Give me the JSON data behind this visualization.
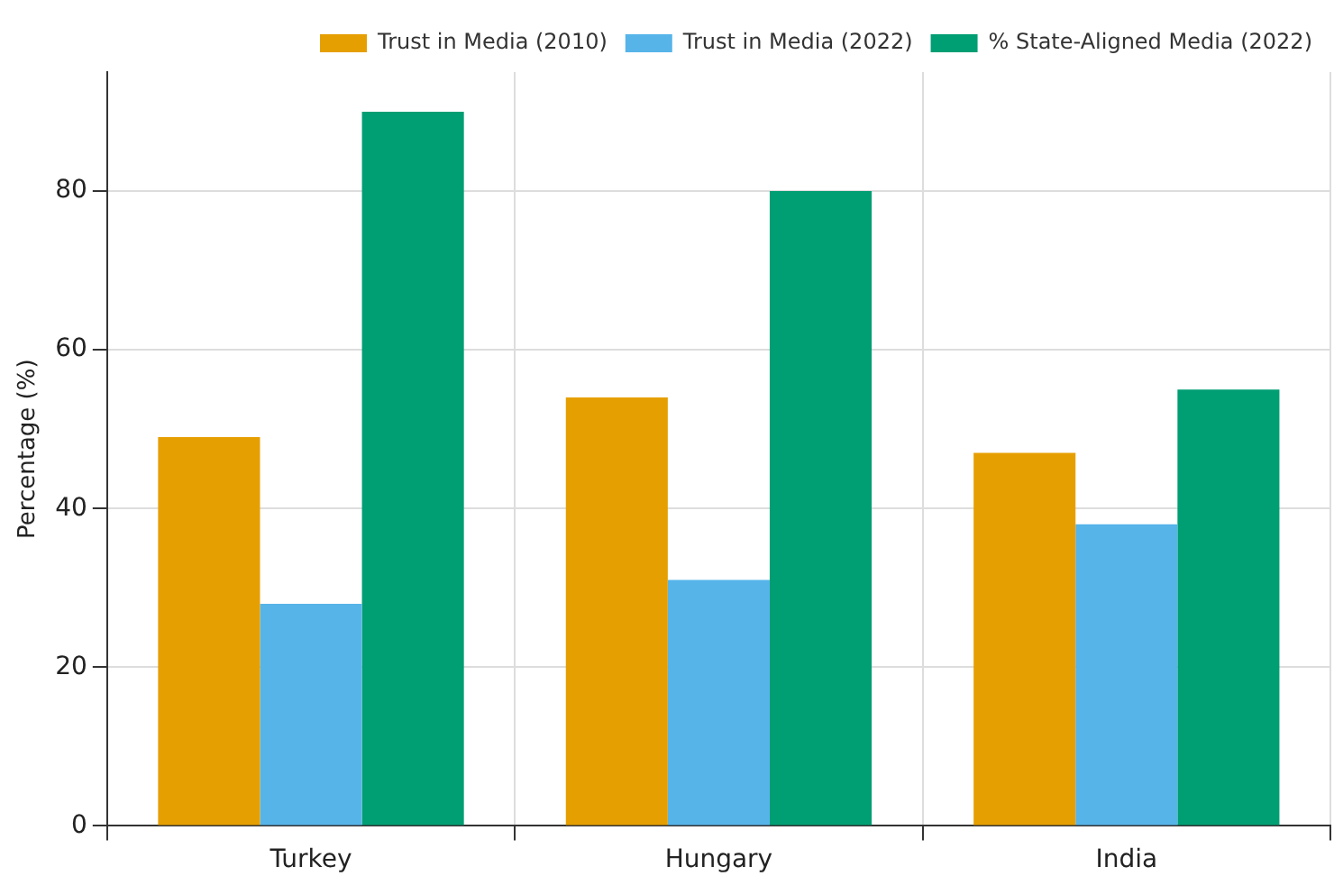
{
  "chart_data": {
    "type": "bar",
    "ylabel": "Percentage (%)",
    "categories": [
      "Turkey",
      "Hungary",
      "India"
    ],
    "series": [
      {
        "name": "Trust in Media (2010)",
        "color": "#e69f00",
        "values": [
          49,
          54,
          47
        ]
      },
      {
        "name": "Trust in Media (2022)",
        "color": "#56b4e9",
        "values": [
          28,
          31,
          38
        ]
      },
      {
        "name": "% State-Aligned Media (2022)",
        "color": "#009e73",
        "values": [
          90,
          80,
          55
        ]
      }
    ],
    "ylim": [
      0,
      95
    ],
    "yticks": [
      0,
      20,
      40,
      60,
      80
    ],
    "grid": true,
    "legend": "top right"
  }
}
